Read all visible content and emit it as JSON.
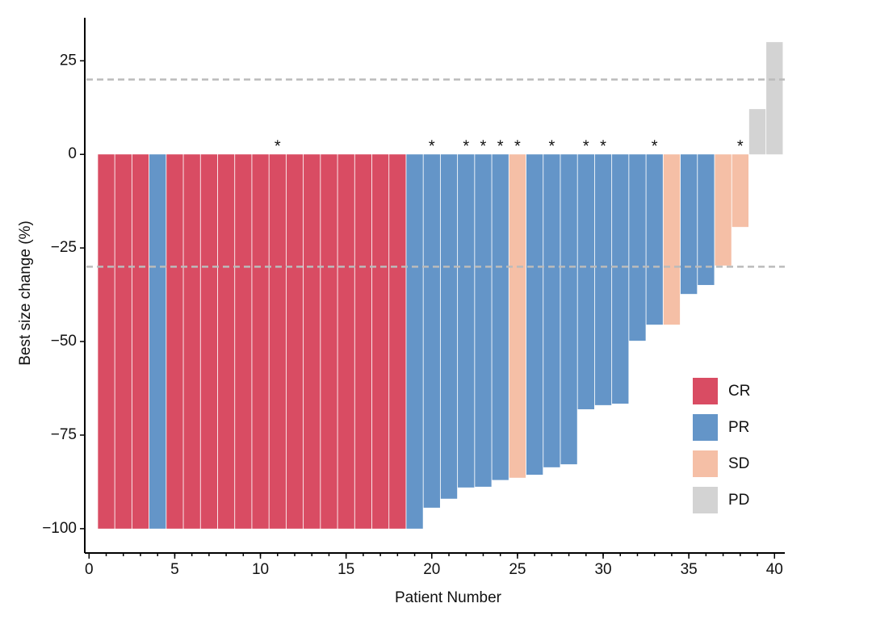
{
  "chart_data": {
    "type": "waterfall",
    "xlabel": "Patient Number",
    "ylabel": "Best size change (%)",
    "x": [
      1,
      2,
      3,
      4,
      5,
      6,
      7,
      8,
      9,
      10,
      11,
      12,
      13,
      14,
      15,
      16,
      17,
      18,
      19,
      20,
      21,
      22,
      23,
      24,
      25,
      26,
      27,
      28,
      29,
      30,
      31,
      32,
      33,
      34,
      35,
      36,
      37,
      38,
      39,
      40
    ],
    "series": [
      {
        "name": "CR",
        "color": "#d94c63",
        "values": [
          -100,
          -100,
          -100,
          null,
          -100,
          -100,
          -100,
          -100,
          -100,
          -100,
          -100,
          -100,
          -100,
          -100,
          -100,
          -100,
          -100,
          -100,
          null,
          null,
          null,
          null,
          null,
          null,
          null,
          null,
          null,
          null,
          null,
          null,
          null,
          null,
          null,
          null,
          null,
          null,
          null,
          null,
          null,
          null
        ]
      },
      {
        "name": "PR",
        "color": "#6495c8",
        "values": [
          null,
          null,
          null,
          -100,
          null,
          null,
          null,
          null,
          null,
          null,
          null,
          null,
          null,
          null,
          null,
          null,
          null,
          null,
          -100,
          -94.4,
          -92,
          -89,
          -88.8,
          -87,
          null,
          -85.6,
          -83.6,
          -82.8,
          -68.1,
          -67,
          -66.6,
          -49.8,
          -45.5,
          null,
          -37.3,
          -34.9,
          null,
          null,
          null,
          null
        ]
      },
      {
        "name": "SD",
        "color": "#f5bfa6",
        "values": [
          null,
          null,
          null,
          null,
          null,
          null,
          null,
          null,
          null,
          null,
          null,
          null,
          null,
          null,
          null,
          null,
          null,
          null,
          null,
          null,
          null,
          null,
          null,
          null,
          -86.4,
          null,
          null,
          null,
          null,
          null,
          null,
          null,
          null,
          -45.5,
          null,
          null,
          -29.7,
          -19.4,
          null,
          null
        ]
      },
      {
        "name": "PD",
        "color": "#d3d3d3",
        "values": [
          null,
          null,
          null,
          null,
          null,
          null,
          null,
          null,
          null,
          null,
          null,
          null,
          null,
          null,
          null,
          null,
          null,
          null,
          null,
          null,
          null,
          null,
          null,
          null,
          null,
          null,
          null,
          null,
          null,
          null,
          null,
          null,
          null,
          null,
          null,
          null,
          null,
          null,
          12.1,
          30
        ]
      }
    ],
    "markers": {
      "label": "*",
      "x": [
        11,
        20,
        22,
        23,
        24,
        25,
        27,
        29,
        30,
        33,
        38
      ]
    },
    "hlines": [
      20,
      -30
    ],
    "xlim": [
      -0.25,
      40.6
    ],
    "xticks": [
      0,
      5,
      10,
      15,
      20,
      25,
      30,
      35,
      40
    ],
    "ylim": [
      -106.5,
      36.5
    ],
    "yticks": [
      {
        "value": -100,
        "label": "−100"
      },
      {
        "value": -75,
        "label": "−75"
      },
      {
        "value": -50,
        "label": "−50"
      },
      {
        "value": -25,
        "label": "−25"
      },
      0,
      25
    ],
    "legend": "lower right"
  }
}
